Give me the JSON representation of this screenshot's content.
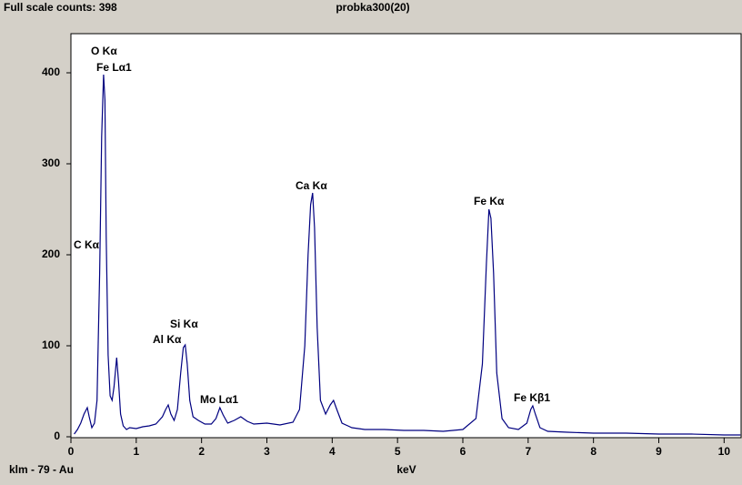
{
  "chart_data": {
    "type": "line",
    "subtitle": "Full scale counts: 398",
    "title": "probka300(20)",
    "x_label": "keV",
    "footer": "klm - 79 - Au",
    "x": [
      0.05,
      0.1,
      0.15,
      0.2,
      0.25,
      0.28,
      0.32,
      0.36,
      0.4,
      0.44,
      0.47,
      0.5,
      0.52,
      0.54,
      0.57,
      0.6,
      0.63,
      0.66,
      0.7,
      0.73,
      0.76,
      0.8,
      0.85,
      0.9,
      1.0,
      1.1,
      1.2,
      1.3,
      1.4,
      1.45,
      1.49,
      1.53,
      1.58,
      1.63,
      1.68,
      1.72,
      1.75,
      1.78,
      1.82,
      1.87,
      1.95,
      2.05,
      2.15,
      2.22,
      2.28,
      2.33,
      2.4,
      2.5,
      2.6,
      2.7,
      2.8,
      3.0,
      3.2,
      3.4,
      3.5,
      3.58,
      3.63,
      3.67,
      3.7,
      3.73,
      3.77,
      3.82,
      3.9,
      3.97,
      4.02,
      4.07,
      4.15,
      4.3,
      4.5,
      4.8,
      5.1,
      5.4,
      5.7,
      6.0,
      6.2,
      6.3,
      6.36,
      6.4,
      6.43,
      6.47,
      6.52,
      6.6,
      6.7,
      6.85,
      6.98,
      7.04,
      7.07,
      7.11,
      7.18,
      7.3,
      7.6,
      8.0,
      8.5,
      9.0,
      9.5,
      10.0,
      10.25
    ],
    "series": [
      {
        "color": "#000080",
        "values": [
          3,
          8,
          15,
          25,
          32,
          22,
          10,
          15,
          40,
          180,
          330,
          398,
          370,
          220,
          90,
          45,
          40,
          55,
          87,
          60,
          25,
          12,
          8,
          10,
          9,
          11,
          12,
          14,
          22,
          30,
          35,
          25,
          18,
          30,
          70,
          98,
          101,
          80,
          40,
          22,
          18,
          14,
          14,
          20,
          32,
          24,
          15,
          18,
          22,
          17,
          14,
          15,
          13,
          16,
          30,
          100,
          200,
          255,
          268,
          230,
          120,
          40,
          25,
          35,
          40,
          30,
          15,
          10,
          8,
          8,
          7,
          7,
          6,
          8,
          20,
          80,
          190,
          250,
          240,
          180,
          70,
          20,
          10,
          8,
          15,
          30,
          34,
          25,
          10,
          6,
          5,
          4,
          4,
          3,
          3,
          2,
          2
        ]
      }
    ],
    "xlim": [
      0,
      10.26
    ],
    "ylim": [
      0,
      443
    ],
    "xticks": [
      0,
      1,
      2,
      3,
      4,
      5,
      6,
      7,
      8,
      9,
      10
    ],
    "yticks": [
      0,
      100,
      200,
      300,
      400
    ],
    "annotations": [
      "O Kα",
      "Fe Lα1",
      "C Kα",
      "Si Kα",
      "Al Kα",
      "Mo Lα1",
      "Ca Kα",
      "Fe Kα",
      "Fe Kβ1"
    ]
  }
}
